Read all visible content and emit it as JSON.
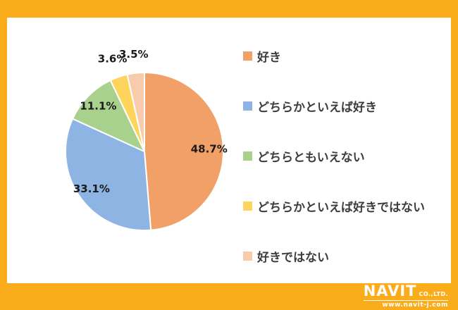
{
  "frame": {
    "border_color": "#FBAC1B",
    "panel_color": "#FFFFFF"
  },
  "chart_data": {
    "type": "pie",
    "title": "",
    "labels": [
      "好き",
      "どちらかといえば好き",
      "どちらともいえない",
      "どちらかといえば好きではない",
      "好きではない"
    ],
    "values": [
      48.7,
      33.1,
      11.1,
      3.6,
      3.5
    ],
    "value_labels": [
      "48.7%",
      "33.1%",
      "11.1%",
      "3.6%",
      "3.5%"
    ],
    "colors": [
      "#F1A168",
      "#8EB4E3",
      "#A9D18E",
      "#FFD45C",
      "#F8CBAD"
    ],
    "start_angle_deg": -90,
    "direction": "clockwise",
    "legend_position": "right",
    "units": "%"
  },
  "logo": {
    "name": "NAVIT",
    "suffix": "CO.,LTD.",
    "url": "www.navit-j.com",
    "text_color": "#FFFFFF"
  }
}
